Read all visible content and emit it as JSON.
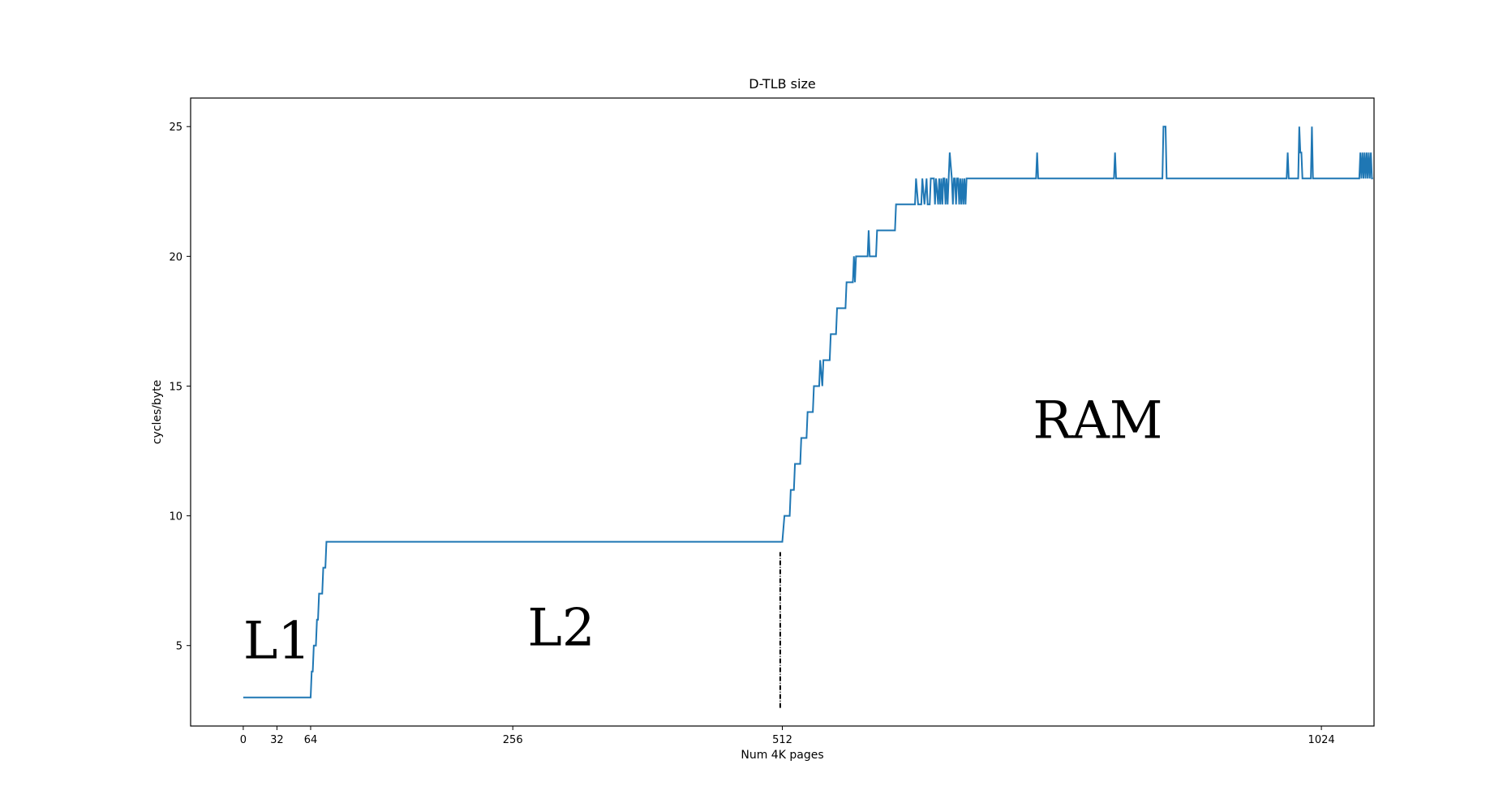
{
  "chart_data": {
    "type": "line",
    "title": "D-TLB size",
    "xlabel": "Num 4K pages",
    "ylabel": "cycles/byte",
    "xlim": [
      -50,
      1074
    ],
    "ylim": [
      1.9,
      26.1
    ],
    "xticks": [
      0,
      32,
      64,
      256,
      512,
      1024
    ],
    "yticks": [
      5,
      10,
      15,
      20,
      25
    ],
    "grid": false,
    "line_color": "#1f77b4",
    "series": [
      {
        "name": "",
        "points": [
          [
            0,
            3
          ],
          [
            64,
            3
          ],
          [
            65,
            4
          ],
          [
            66,
            4
          ],
          [
            67,
            5
          ],
          [
            69,
            5
          ],
          [
            70,
            6
          ],
          [
            71,
            6
          ],
          [
            72,
            7
          ],
          [
            75,
            7
          ],
          [
            76,
            8
          ],
          [
            78,
            8
          ],
          [
            79,
            9
          ],
          [
            86,
            9
          ],
          [
            150,
            9
          ],
          [
            256,
            9
          ],
          [
            400,
            9
          ],
          [
            512,
            9
          ],
          [
            514,
            10
          ],
          [
            519,
            10
          ],
          [
            520,
            11
          ],
          [
            523,
            11
          ],
          [
            524,
            12
          ],
          [
            529,
            12
          ],
          [
            530,
            13
          ],
          [
            535,
            13
          ],
          [
            536,
            14
          ],
          [
            541,
            14
          ],
          [
            542,
            15
          ],
          [
            547,
            15
          ],
          [
            548,
            16
          ],
          [
            550,
            15
          ],
          [
            551,
            16
          ],
          [
            557,
            16
          ],
          [
            558,
            17
          ],
          [
            563,
            17
          ],
          [
            564,
            18
          ],
          [
            572,
            18
          ],
          [
            573,
            19
          ],
          [
            579,
            19
          ],
          [
            580,
            20
          ],
          [
            581,
            19
          ],
          [
            582,
            20
          ],
          [
            593,
            20
          ],
          [
            594,
            21
          ],
          [
            595,
            20
          ],
          [
            601,
            20
          ],
          [
            602,
            21
          ],
          [
            619,
            21
          ],
          [
            620,
            22
          ],
          [
            638,
            22
          ],
          [
            639,
            23
          ],
          [
            641,
            22
          ],
          [
            644,
            22
          ],
          [
            645,
            23
          ],
          [
            647,
            22
          ],
          [
            649,
            23
          ],
          [
            650,
            22
          ],
          [
            652,
            22
          ],
          [
            653,
            23
          ],
          [
            656,
            23
          ],
          [
            657,
            22
          ],
          [
            658,
            23
          ],
          [
            660,
            22
          ],
          [
            661,
            23
          ],
          [
            662,
            22
          ],
          [
            663,
            23
          ],
          [
            664,
            22
          ],
          [
            665,
            23
          ],
          [
            666,
            23
          ],
          [
            667,
            22
          ],
          [
            668,
            23
          ],
          [
            669,
            22
          ],
          [
            670,
            23
          ],
          [
            671,
            24
          ],
          [
            673,
            23
          ],
          [
            674,
            22
          ],
          [
            675,
            23
          ],
          [
            676,
            23
          ],
          [
            677,
            22
          ],
          [
            678,
            23
          ],
          [
            679,
            23
          ],
          [
            680,
            22
          ],
          [
            681,
            23
          ],
          [
            682,
            22
          ],
          [
            683,
            23
          ],
          [
            684,
            22
          ],
          [
            685,
            23
          ],
          [
            686,
            22
          ],
          [
            687,
            23
          ],
          [
            700,
            23
          ],
          [
            753,
            23
          ],
          [
            754,
            24
          ],
          [
            755,
            23
          ],
          [
            827,
            23
          ],
          [
            828,
            24
          ],
          [
            829,
            23
          ],
          [
            873,
            23
          ],
          [
            874,
            25
          ],
          [
            876,
            25
          ],
          [
            877,
            23
          ],
          [
            991,
            23
          ],
          [
            992,
            24
          ],
          [
            993,
            23
          ],
          [
            1002,
            23
          ],
          [
            1003,
            25
          ],
          [
            1004,
            24
          ],
          [
            1005,
            24
          ],
          [
            1006,
            23
          ],
          [
            1014,
            23
          ],
          [
            1015,
            25
          ],
          [
            1016,
            23
          ],
          [
            1060,
            23
          ],
          [
            1061,
            24
          ],
          [
            1062,
            23
          ],
          [
            1063,
            24
          ],
          [
            1064,
            23
          ],
          [
            1065,
            24
          ],
          [
            1066,
            23
          ],
          [
            1067,
            24
          ],
          [
            1068,
            23
          ],
          [
            1069,
            24
          ],
          [
            1070,
            23
          ],
          [
            1071,
            24
          ],
          [
            1072,
            23
          ],
          [
            1073,
            23
          ]
        ]
      }
    ],
    "reference_line": {
      "x": 510,
      "y_range": [
        2.6,
        8.6
      ],
      "style": "dashdot"
    },
    "annotations": [
      {
        "text": "L1",
        "x": 0,
        "y": 4.5
      },
      {
        "text": "L2",
        "x": 270,
        "y": 5.0
      },
      {
        "text": "RAM",
        "x": 750,
        "y": 13.0
      }
    ]
  }
}
